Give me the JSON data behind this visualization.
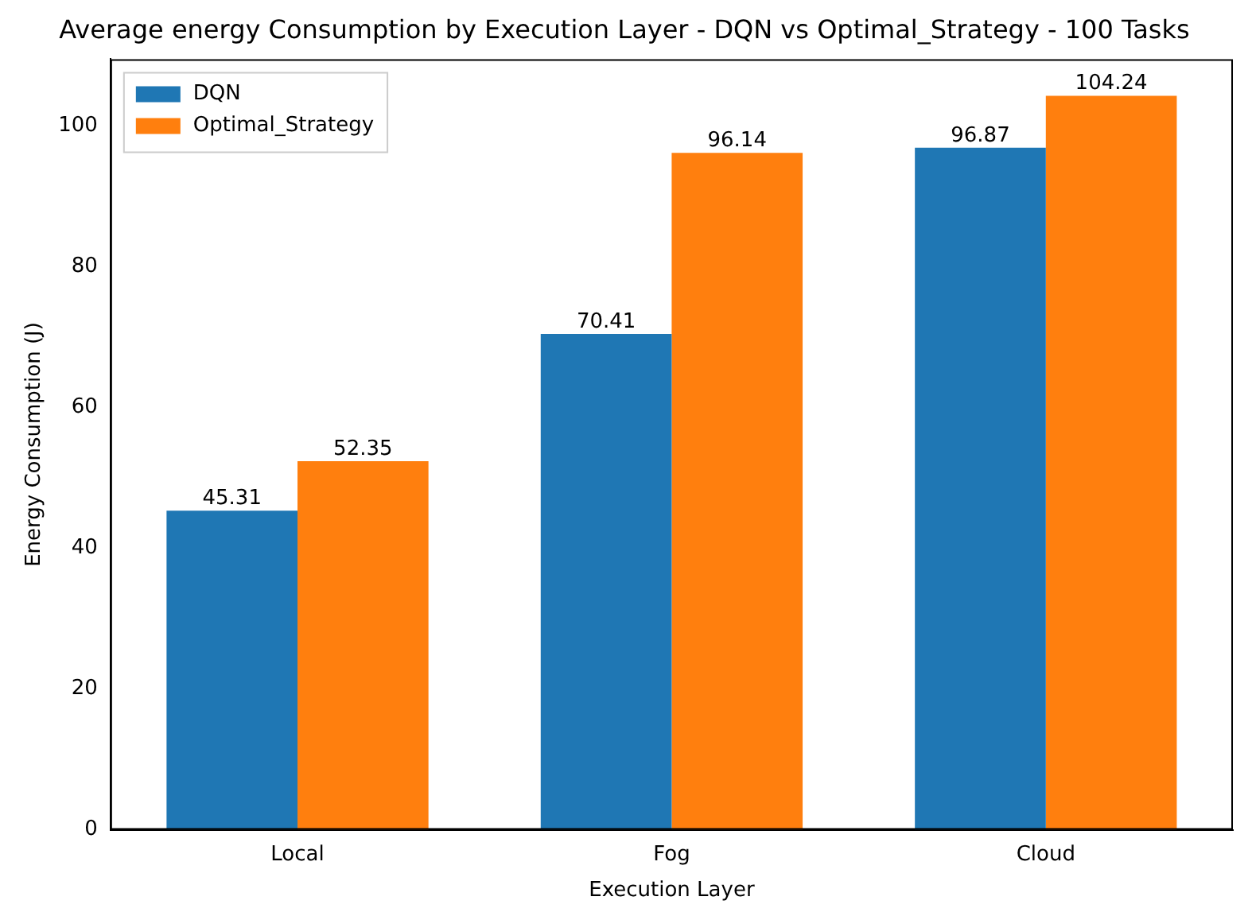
{
  "chart_data": {
    "type": "bar",
    "title": "Average energy Consumption by Execution Layer - DQN vs Optimal_Strategy - 100 Tasks",
    "xlabel": "Execution Layer",
    "ylabel": "Energy Consumption (J)",
    "categories": [
      "Local",
      "Fog",
      "Cloud"
    ],
    "series": [
      {
        "name": "DQN",
        "color": "#1f77b4",
        "values": [
          45.31,
          70.41,
          96.87
        ]
      },
      {
        "name": "Optimal_Strategy",
        "color": "#ff7f0e",
        "values": [
          52.35,
          96.14,
          104.24
        ]
      }
    ],
    "ylim": [
      0,
      109.45
    ],
    "yticks": [
      0,
      20,
      40,
      60,
      80,
      100
    ],
    "grid": false,
    "legend": "top left",
    "data_labels": true
  }
}
